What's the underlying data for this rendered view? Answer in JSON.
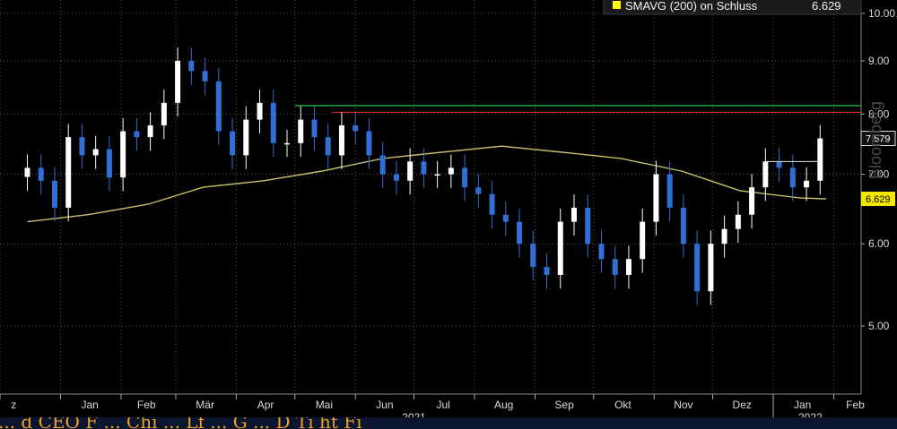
{
  "chart_data": {
    "type": "candlestick",
    "title": "",
    "xlabel": "",
    "ylabel": "",
    "ylim": [
      4.3,
      10.3
    ],
    "y_scale": "log",
    "yticks": [
      "5.00",
      "6.00",
      "7.00",
      "8.00",
      "9.00",
      "10.00"
    ],
    "xticks": [
      "z",
      "Jan",
      "Feb",
      "Mär",
      "Apr",
      "Mai",
      "Jun",
      "Jul",
      "Aug",
      "Sep",
      "Okt",
      "Nov",
      "Dez",
      "Jan",
      "Feb"
    ],
    "year_labels": [
      "2021",
      "2022"
    ],
    "legend": {
      "swatch_color": "#ffff00",
      "label": "SMAVG (200)  on Schluss",
      "value": "6.629"
    },
    "flags": {
      "last_price": "7.579",
      "sma_value": "6.629"
    },
    "watermark": "Bloomberg",
    "colors": {
      "up": "#ffffff",
      "down": "#2f6fd6",
      "sma": "#c9c06a",
      "green_line": "#1fb33c",
      "red_line": "#d02020",
      "background": "#000000"
    },
    "series": [
      {
        "name": "Schluss",
        "type": "ohlc",
        "x": [
          "2020-12-15",
          "2020-12-22",
          "2020-12-29",
          "2021-01-05",
          "2021-01-12",
          "2021-01-19",
          "2021-01-26",
          "2021-02-02",
          "2021-02-09",
          "2021-02-16",
          "2021-02-23",
          "2021-03-02",
          "2021-03-09",
          "2021-03-16",
          "2021-03-23",
          "2021-03-30",
          "2021-04-06",
          "2021-04-13",
          "2021-04-20",
          "2021-04-27",
          "2021-05-04",
          "2021-05-11",
          "2021-05-18",
          "2021-05-25",
          "2021-06-01",
          "2021-06-08",
          "2021-06-15",
          "2021-06-22",
          "2021-06-29",
          "2021-07-06",
          "2021-07-13",
          "2021-07-20",
          "2021-07-27",
          "2021-08-03",
          "2021-08-10",
          "2021-08-17",
          "2021-08-24",
          "2021-08-31",
          "2021-09-07",
          "2021-09-14",
          "2021-09-21",
          "2021-09-28",
          "2021-10-05",
          "2021-10-12",
          "2021-10-19",
          "2021-10-26",
          "2021-11-02",
          "2021-11-09",
          "2021-11-16",
          "2021-11-23",
          "2021-11-30",
          "2021-12-07",
          "2021-12-14",
          "2021-12-21",
          "2021-12-28",
          "2022-01-04",
          "2022-01-11",
          "2022-01-18",
          "2022-01-25"
        ],
        "values": [
          7.1,
          6.9,
          6.5,
          7.6,
          7.3,
          7.4,
          6.95,
          7.7,
          7.6,
          7.8,
          8.2,
          9.0,
          8.8,
          8.6,
          7.7,
          7.3,
          7.9,
          8.2,
          7.5,
          7.5,
          7.9,
          7.6,
          7.3,
          7.8,
          7.7,
          7.3,
          7.0,
          6.9,
          7.2,
          7.0,
          7.0,
          7.1,
          6.8,
          6.7,
          6.4,
          6.3,
          6.0,
          5.7,
          5.6,
          6.3,
          6.5,
          6.0,
          5.8,
          5.6,
          5.8,
          6.3,
          7.0,
          6.5,
          6.0,
          5.4,
          6.0,
          6.2,
          6.4,
          6.8,
          7.2,
          7.1,
          6.8,
          6.9,
          7.579
        ]
      },
      {
        "name": "SMAVG (200)",
        "type": "line",
        "x": [
          "2020-12-15",
          "2021-01-15",
          "2021-02-15",
          "2021-03-15",
          "2021-04-15",
          "2021-05-15",
          "2021-06-15",
          "2021-07-15",
          "2021-08-15",
          "2021-09-15",
          "2021-10-15",
          "2021-11-15",
          "2021-12-15",
          "2022-01-15",
          "2022-01-28"
        ],
        "values": [
          6.3,
          6.4,
          6.55,
          6.8,
          6.9,
          7.05,
          7.25,
          7.35,
          7.45,
          7.35,
          7.25,
          7.05,
          6.75,
          6.64,
          6.629
        ]
      }
    ],
    "hlines": [
      {
        "value": 8.15,
        "x_from": "2021-05-01",
        "color": "#1fb33c"
      },
      {
        "value": 8.03,
        "x_from": "2021-05-20",
        "color": "#d02020"
      }
    ]
  },
  "headline_text": "...  d  CEO  F  ...  Chi  ...  Lf  ...  G  ...  D  Ti  ht  Fi"
}
